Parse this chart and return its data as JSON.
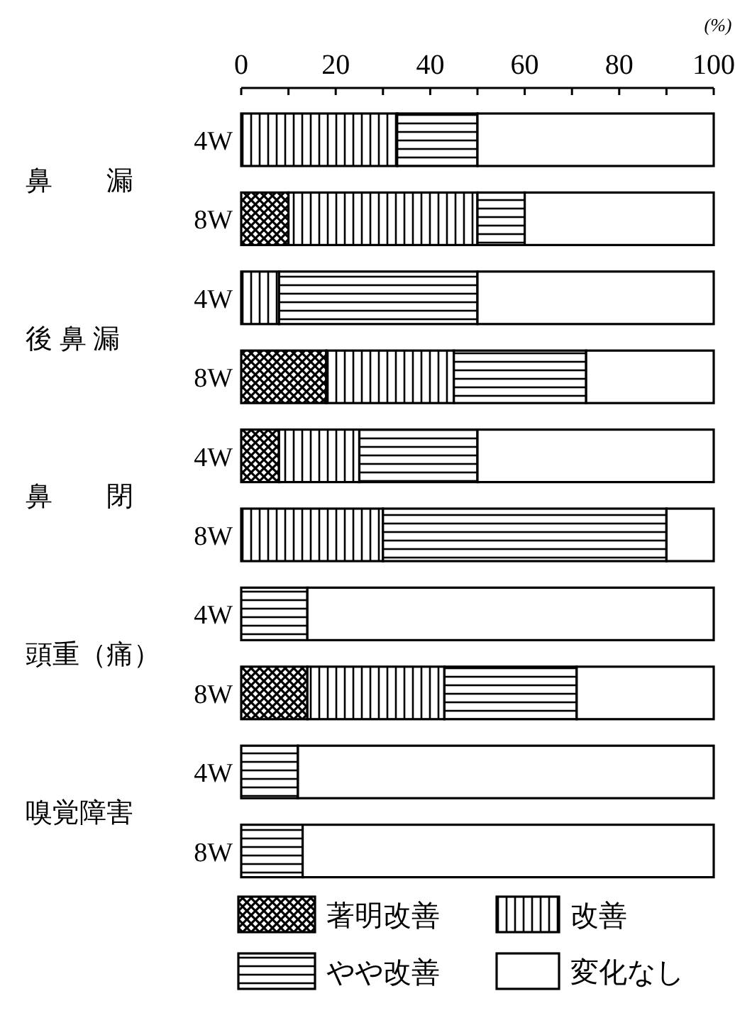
{
  "chart_data": {
    "type": "bar",
    "orientation": "horizontal",
    "stacked": true,
    "xlabel": "(%)",
    "categories": [
      "4W",
      "8W",
      "4W",
      "8W",
      "4W",
      "8W",
      "4W",
      "8W",
      "4W",
      "8W"
    ],
    "annotations": [
      "鼻　　漏",
      "後 鼻 漏",
      "鼻　　閉",
      "頭重（痛）",
      "嗅覚障害"
    ],
    "series": [
      {
        "name": "著明改善",
        "color": "#000000",
        "values": [
          0,
          10,
          0,
          18,
          8,
          0,
          0,
          14,
          0,
          0
        ]
      },
      {
        "name": "改善",
        "color": "#000000",
        "values": [
          33,
          40,
          8,
          27,
          17,
          30,
          0,
          29,
          0,
          0
        ]
      },
      {
        "name": "やや改善",
        "color": "#000000",
        "values": [
          17,
          10,
          42,
          28,
          25,
          60,
          14,
          28,
          12,
          13
        ]
      },
      {
        "name": "変化なし",
        "color": "#ffffff",
        "values": [
          50,
          40,
          50,
          27,
          50,
          10,
          86,
          29,
          88,
          87
        ]
      }
    ],
    "xlim": [
      0,
      100
    ],
    "xticks": [
      0,
      {
        "value": 10,
        "label": null
      },
      20,
      {
        "value": 30,
        "label": null
      },
      40,
      {
        "value": 50,
        "label": null
      },
      60,
      {
        "value": 70,
        "label": null
      },
      80,
      {
        "value": 90,
        "label": null
      },
      100
    ],
    "legend": "bottom",
    "grid": false
  }
}
